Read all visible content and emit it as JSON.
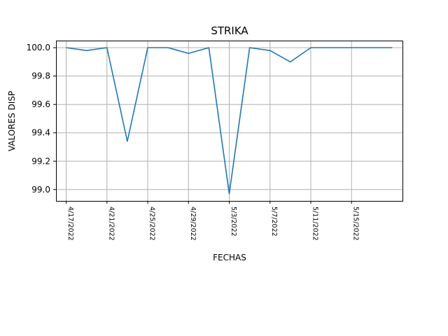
{
  "chart_data": {
    "type": "line",
    "title": "STRIKA",
    "xlabel": "FECHAS",
    "ylabel": "VALORES DISP",
    "x_tick_labels": [
      "4/17/2022",
      "4/21/2022",
      "4/25/2022",
      "4/29/2022",
      "5/3/2022",
      "5/7/2022",
      "5/11/2022",
      "5/15/2022"
    ],
    "y_tick_labels": [
      "99.0",
      "99.2",
      "99.4",
      "99.6",
      "99.8",
      "100.0"
    ],
    "y_ticks": [
      99.0,
      99.2,
      99.4,
      99.6,
      99.8,
      100.0
    ],
    "xlim": [
      "4/16/2022",
      "5/20/2022"
    ],
    "ylim": [
      98.92,
      100.05
    ],
    "grid": true,
    "series": [
      {
        "color": "#1f77b4",
        "x": [
          "4/17/2022",
          "4/19/2022",
          "4/21/2022",
          "4/23/2022",
          "4/25/2022",
          "4/27/2022",
          "4/29/2022",
          "5/1/2022",
          "5/3/2022",
          "5/5/2022",
          "5/7/2022",
          "5/9/2022",
          "5/11/2022",
          "5/13/2022",
          "5/15/2022",
          "5/17/2022",
          "5/19/2022"
        ],
        "values": [
          100.0,
          99.98,
          100.0,
          99.34,
          100.0,
          100.0,
          99.96,
          100.0,
          98.97,
          100.0,
          99.98,
          99.9,
          100.0,
          100.0,
          100.0,
          100.0,
          100.0
        ]
      }
    ]
  }
}
